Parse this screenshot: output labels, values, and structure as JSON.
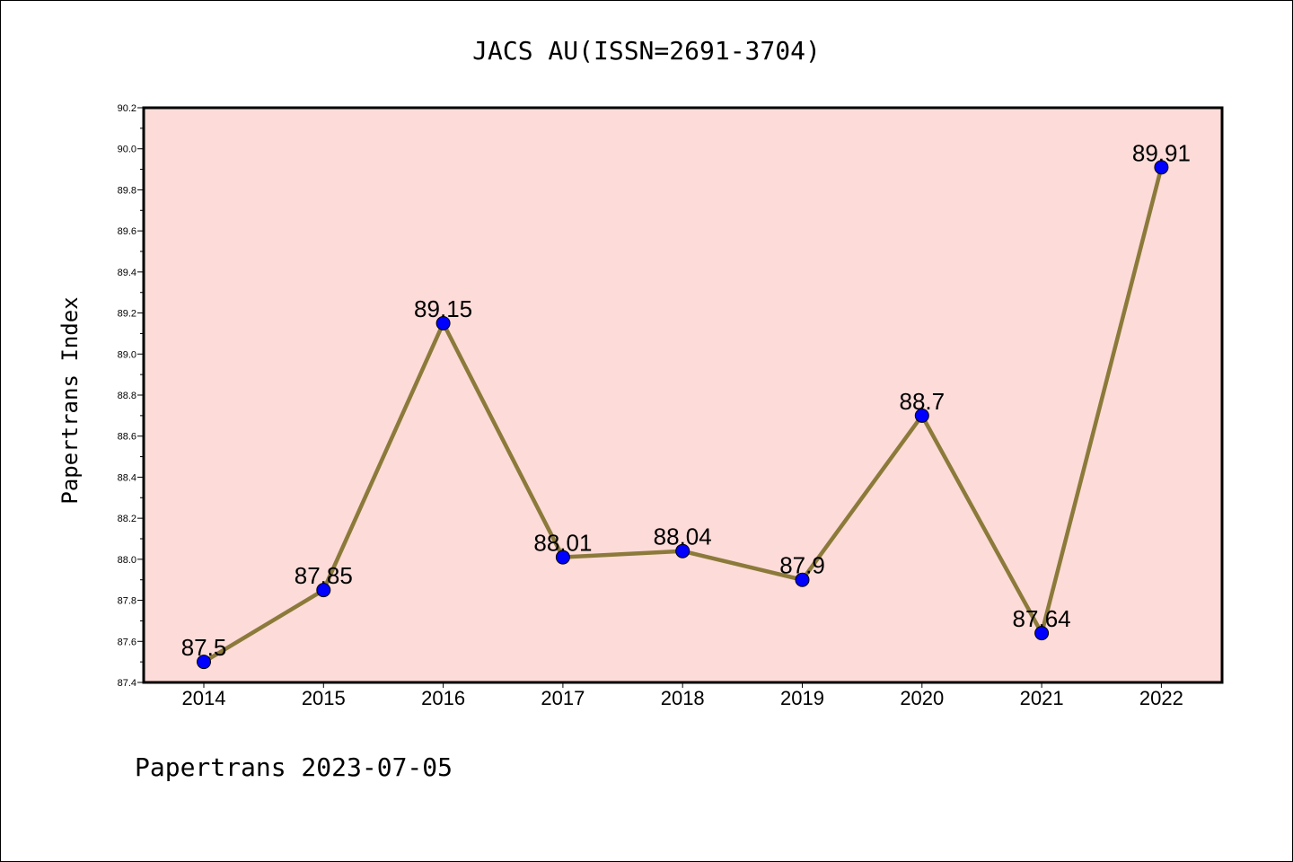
{
  "chart_data": {
    "type": "line",
    "title": "JACS AU(ISSN=2691-3704)",
    "ylabel": "Papertrans Index",
    "xlabel": "",
    "categories": [
      "2014",
      "2015",
      "2016",
      "2017",
      "2018",
      "2019",
      "2020",
      "2021",
      "2022"
    ],
    "values": [
      87.5,
      87.85,
      89.15,
      88.01,
      88.04,
      87.9,
      88.7,
      87.64,
      89.91
    ],
    "data_labels": [
      "87.5",
      "87.85",
      "89.15",
      "88.01",
      "88.04",
      "87.9",
      "88.7",
      "87.64",
      "89.91"
    ],
    "ylim": [
      87.4,
      90.2
    ],
    "yticks": [
      "87.4",
      "87.6",
      "87.8",
      "88.0",
      "88.2",
      "88.4",
      "88.6",
      "88.8",
      "89.0",
      "89.2",
      "89.4",
      "89.6",
      "89.8",
      "90.0",
      "90.2"
    ],
    "grid": false,
    "plot_background": "#fddbd8",
    "line_color": "#8b7a3a",
    "marker_color": "#0000ff"
  },
  "footer": "Papertrans 2023-07-05"
}
